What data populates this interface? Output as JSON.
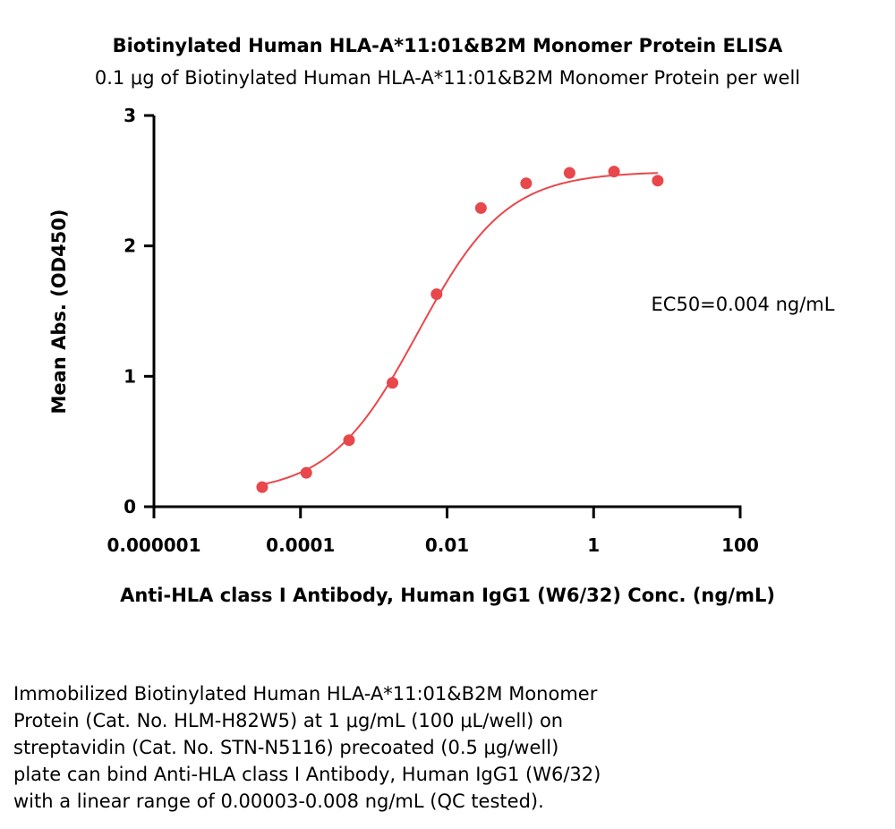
{
  "chart_data": {
    "type": "scatter",
    "title": "Biotinylated Human HLA-A*11:01&B2M Monomer Protein ELISA",
    "subtitle": "0.1 μg of Biotinylated Human HLA-A*11:01&B2M Monomer Protein per well",
    "xlabel": "Anti-HLA class I Antibody, Human IgG1 (W6/32) Conc. (ng/mL)",
    "ylabel": "Mean Abs. (OD450)",
    "x_scale": "log",
    "xlim": [
      1e-06,
      100
    ],
    "ylim": [
      0,
      3
    ],
    "x_ticks": [
      1e-06,
      0.0001,
      0.01,
      1,
      100
    ],
    "x_tick_labels": [
      "0.000001",
      "0.0001",
      "0.01",
      "1",
      "100"
    ],
    "y_ticks": [
      0,
      1,
      2,
      3
    ],
    "y_tick_labels": [
      "0",
      "1",
      "2",
      "3"
    ],
    "grid": false,
    "series": [
      {
        "color": "#e8474c",
        "x": [
          3e-05,
          0.00012,
          0.00046,
          0.0018,
          0.0072,
          0.029,
          0.12,
          0.47,
          1.9,
          7.5
        ],
        "y": [
          0.15,
          0.26,
          0.51,
          0.95,
          1.63,
          2.29,
          2.48,
          2.56,
          2.57,
          2.5
        ]
      }
    ],
    "annotation": "EC50=0.004 ng/mL"
  },
  "caption_lines": [
    "Immobilized Biotinylated Human HLA-A*11:01&B2M Monomer",
    "Protein (Cat. No. HLM-H82W5) at 1 μg/mL (100 μL/well) on",
    "streptavidin (Cat. No. STN-N5116) precoated (0.5 μg/well)",
    "plate can bind Anti-HLA class I Antibody, Human IgG1 (W6/32)",
    "with a linear range of 0.00003-0.008 ng/mL (QC tested)."
  ]
}
